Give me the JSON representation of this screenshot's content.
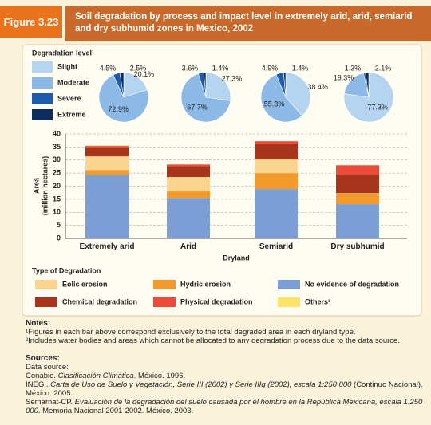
{
  "header": {
    "figure": "Figure 3.23",
    "title": "Soil degradation by process and impact level in extremely arid, arid, semiarid and dry subhumid zones in Mexico, 2002"
  },
  "chart_data": [
    {
      "type": "pie",
      "legend_title": "Degradation level¹",
      "categories": [
        "Slight",
        "Moderate",
        "Severe",
        "Extreme"
      ],
      "colors": [
        "#b4d4f0",
        "#8db9e6",
        "#1d5caa",
        "#0c2b5e"
      ],
      "series": [
        {
          "values": [
            20.1,
            72.9,
            4.5,
            2.5
          ],
          "value_labels": [
            "20.1%",
            "72.9%",
            "4.5%",
            "2.5%"
          ]
        },
        {
          "values": [
            27.3,
            67.7,
            3.6,
            1.4
          ],
          "value_labels": [
            "27.3%",
            "67.7%",
            "3.6%",
            "1.4%"
          ]
        },
        {
          "values": [
            38.4,
            55.3,
            4.9,
            1.4
          ],
          "value_labels": [
            "38.4%",
            "55.3%",
            "4.9%",
            "1.4%"
          ]
        },
        {
          "values": [
            77.3,
            19.3,
            1.3,
            2.1
          ],
          "value_labels": [
            "77.3%",
            "19.3%",
            "1.3%",
            "2.1%"
          ]
        }
      ]
    },
    {
      "type": "bar",
      "stacked": true,
      "grid": true,
      "categories": [
        "Extremely arid",
        "Arid",
        "Semiarid",
        "Dry subhumid"
      ],
      "xlabel": "Dryland",
      "ylabel": [
        "Area",
        "(million hectares)"
      ],
      "ylim": [
        0,
        40
      ],
      "yticks": [
        0,
        5,
        10,
        15,
        20,
        25,
        30,
        35,
        40
      ],
      "legend_title": "Type of Degradation",
      "series": [
        {
          "name": "No evidence of degradation",
          "color": "#7b9fd4",
          "values": [
            24.4,
            15.5,
            18.9,
            13.1
          ]
        },
        {
          "name": "Hydric erosion",
          "color": "#f39a2a",
          "values": [
            1.8,
            2.5,
            6.1,
            4.0
          ]
        },
        {
          "name": "Eolic erosion",
          "color": "#fbd58f",
          "values": [
            5.2,
            5.5,
            5.2,
            0.2
          ]
        },
        {
          "name": "Chemical degradation",
          "color": "#a8341c",
          "values": [
            3.4,
            4.2,
            6.1,
            7.1
          ]
        },
        {
          "name": "Physical degradation",
          "color": "#ee4a3a",
          "values": [
            0.6,
            0.6,
            0.9,
            3.6
          ]
        },
        {
          "name": "Others²",
          "color": "#fde26a",
          "values": [
            0.2,
            0.1,
            0,
            0
          ]
        }
      ]
    }
  ],
  "notes": {
    "title": "Notes:",
    "items": [
      "¹Figures in each bar above correspond exclusively to the total degraded area in each dryland type.",
      "²Includes water bodies and areas which cannot be allocated to any degradation process due to the data source."
    ]
  },
  "sources": {
    "title": "Sources:",
    "items": [
      [
        "Data source:"
      ],
      [
        "Conabio. ",
        "Clasificación Climática",
        ". México. 1996."
      ],
      [
        "INEGI. ",
        "Carta de Uso de Suelo y Vegetación, Serie III (2002) y Serie IIIg (2002), escala 1:250 000",
        " (Continuo Nacional). México. 2005."
      ],
      [
        "Semarnat-CP. ",
        "Evaluación de la degradación del suelo causada por el hombre en la República Mexicana, escala 1:250 000",
        ". Memoria Nacional 2001-2002. México. 2003."
      ]
    ]
  }
}
